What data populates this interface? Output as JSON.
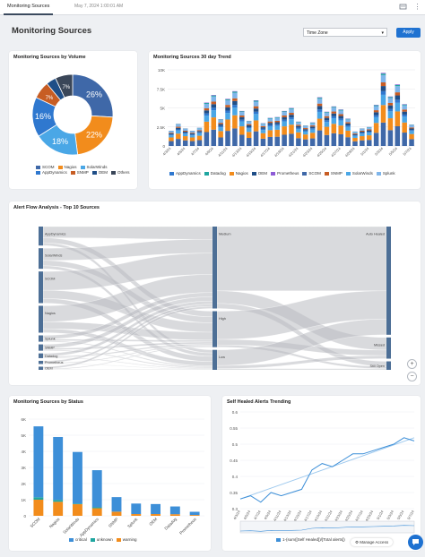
{
  "header": {
    "tab_label": "Monitoring Sources",
    "date_text": "May 7, 2024 1:00:01 AM",
    "icons": [
      "share-icon",
      "more-icon"
    ]
  },
  "page": {
    "title": "Monitoring Sources",
    "timezone_placeholder": "Time Zone",
    "apply_label": "Apply"
  },
  "colors": {
    "SCOM": "#3f68a8",
    "Nagios": "#f28c1c",
    "SolarWinds": "#4aa7e6",
    "AppDynamics": "#2f78cf",
    "SNMP": "#c75d24",
    "OEM": "#1f4e87",
    "Others": "#3a4658",
    "Datadog": "#1fa6a0",
    "Prometheus": "#8e5bd6",
    "Splunk": "#7fb5ea"
  },
  "volume": {
    "title": "Monitoring Sources by Volume",
    "chart_data": {
      "type": "pie",
      "title": "Monitoring Sources by Volume",
      "slices": [
        {
          "name": "SCOM",
          "value": 26,
          "label": "26%"
        },
        {
          "name": "Nagios",
          "value": 22,
          "label": "22%"
        },
        {
          "name": "SolarWinds",
          "value": 18,
          "label": "18%"
        },
        {
          "name": "AppDynamics",
          "value": 16,
          "label": "16%"
        },
        {
          "name": "SNMP",
          "value": 7,
          "label": "7%"
        },
        {
          "name": "OEM",
          "value": 4,
          "label": ""
        },
        {
          "name": "Others",
          "value": 7,
          "label": "7%"
        }
      ],
      "legend": [
        "SCOM",
        "Nagios",
        "SolarWinds",
        "AppDynamics",
        "SNMP",
        "OEM",
        "Others"
      ]
    }
  },
  "trend": {
    "title": "Monitoring Sources 30 day Trend",
    "chart_data": {
      "type": "bar",
      "stacked": true,
      "title": "Monitoring Sources 30 day Trend",
      "ylim": [
        0,
        10000
      ],
      "yticks": [
        "0",
        "2.5K",
        "5K",
        "7.5K",
        "10K"
      ],
      "categories": [
        "4/3/24",
        "4/4/24",
        "4/5/24",
        "4/6/24",
        "4/7/24",
        "4/8/24",
        "4/9/24",
        "4/10/24",
        "4/11/24",
        "4/12/24",
        "4/13/24",
        "4/14/24",
        "4/15/24",
        "4/16/24",
        "4/17/24",
        "4/18/24",
        "4/19/24",
        "4/20/24",
        "4/21/24",
        "4/22/24",
        "4/23/24",
        "4/24/24",
        "4/25/24",
        "4/26/24",
        "4/27/24",
        "4/28/24",
        "4/29/24",
        "4/30/24",
        "5/1/24",
        "5/2/24",
        "5/3/24",
        "5/4/24",
        "5/5/24",
        "5/6/24",
        "5/7/24"
      ],
      "xtick_labels": [
        "4/3/24",
        "4/5/24",
        "4/7/24",
        "4/9/24",
        "4/11/24",
        "4/13/24",
        "4/15/24",
        "4/17/24",
        "4/19/24",
        "4/21/24",
        "4/23/24",
        "4/25/24",
        "4/27/24",
        "4/29/24",
        "5/1/24",
        "5/3/24",
        "5/5/24",
        "5/7/24"
      ],
      "totals": [
        2000,
        2900,
        2300,
        2000,
        2400,
        5700,
        6700,
        3500,
        6200,
        7200,
        4600,
        3300,
        6000,
        3000,
        3700,
        3800,
        4600,
        5000,
        3200,
        2700,
        3100,
        6400,
        4500,
        5200,
        4800,
        3600,
        1900,
        2300,
        2500,
        5400,
        9600,
        6500,
        8100,
        5500,
        2800
      ],
      "shares": {
        "AppDynamics": 0.05,
        "Datadog": 0.02,
        "Nagios": 0.24,
        "OEM": 0.07,
        "Prometheus": 0.01,
        "SCOM": 0.32,
        "SNMP": 0.05,
        "SolarWinds": 0.14,
        "Splunk": 0.1
      },
      "legend": [
        "AppDynamics",
        "Datadog",
        "Nagios",
        "OEM",
        "Prometheus",
        "SCOM",
        "SNMP",
        "SolarWinds",
        "Splunk"
      ]
    }
  },
  "sankey": {
    "title": "Alert Flow Analysis - Top 10 Sources",
    "chart_data": {
      "type": "sankey",
      "title": "Alert Flow Analysis - Top 10 Sources",
      "sources": [
        {
          "name": "AppDynamics",
          "value": 12
        },
        {
          "name": "SolarWinds",
          "value": 13
        },
        {
          "name": "SCOM",
          "value": 20
        },
        {
          "name": "Nagios",
          "value": 17
        },
        {
          "name": "Splunk",
          "value": 4
        },
        {
          "name": "SNMP",
          "value": 4
        },
        {
          "name": "Datadog",
          "value": 3
        },
        {
          "name": "Prometheus",
          "value": 2
        },
        {
          "name": "OEM",
          "value": 2
        }
      ],
      "severities": [
        {
          "name": "Medium",
          "value": 41
        },
        {
          "name": "High",
          "value": 18
        },
        {
          "name": "Low",
          "value": 10
        }
      ],
      "outcomes": [
        {
          "name": "Auto Healed",
          "value": 51
        },
        {
          "name": "Missed",
          "value": 10
        },
        {
          "name": "Still Open",
          "value": 4
        }
      ]
    }
  },
  "status": {
    "title": "Monitoring Sources by Status",
    "chart_data": {
      "type": "bar",
      "stacked": true,
      "title": "Monitoring Sources by Status",
      "ylim": [
        0,
        6000
      ],
      "yticks": [
        "0",
        "1K",
        "2K",
        "3K",
        "4K",
        "5K",
        "6K"
      ],
      "categories": [
        "SCOM",
        "Nagios",
        "SolarWinds",
        "AppDynamics",
        "SNMP",
        "Splunk",
        "OEM",
        "Datadog",
        "Prometheus"
      ],
      "series": [
        {
          "name": "critical",
          "color": "#3d8fd8",
          "values": [
            4400,
            3900,
            3200,
            2300,
            900,
            650,
            620,
            480,
            200
          ]
        },
        {
          "name": "unknown",
          "color": "#1fa6a0",
          "values": [
            150,
            120,
            40,
            60,
            10,
            0,
            0,
            0,
            0
          ]
        },
        {
          "name": "warning",
          "color": "#f28c1c",
          "values": [
            1000,
            870,
            720,
            470,
            250,
            110,
            110,
            100,
            50
          ]
        }
      ]
    }
  },
  "self_healed": {
    "title": "Self Healed Alerts Trending",
    "legend_label": "1-(sum([Self Healed])/[Total alerts])",
    "chart_data": {
      "type": "line",
      "title": "Self Healed Alerts Trending",
      "ylim": [
        0.3,
        0.6
      ],
      "yticks": [
        "0.3",
        "0.35",
        "0.4",
        "0.45",
        "0.5",
        "0.55",
        "0.6"
      ],
      "x": [
        "4/3/24",
        "4/5/24",
        "4/7/24",
        "4/9/24",
        "4/11/24",
        "4/13/24",
        "4/15/24",
        "4/17/24",
        "4/19/24",
        "4/21/24",
        "4/23/24",
        "4/25/24",
        "4/27/24",
        "4/29/24",
        "5/1/24",
        "5/3/24",
        "5/5/24",
        "5/7/24"
      ],
      "y": [
        0.33,
        0.34,
        0.32,
        0.35,
        0.34,
        0.35,
        0.36,
        0.42,
        0.44,
        0.43,
        0.45,
        0.47,
        0.47,
        0.48,
        0.49,
        0.5,
        0.52,
        0.51
      ],
      "trendline": [
        0.33,
        0.52
      ]
    }
  },
  "footer": {
    "manage_access_label": "Manage Access"
  }
}
